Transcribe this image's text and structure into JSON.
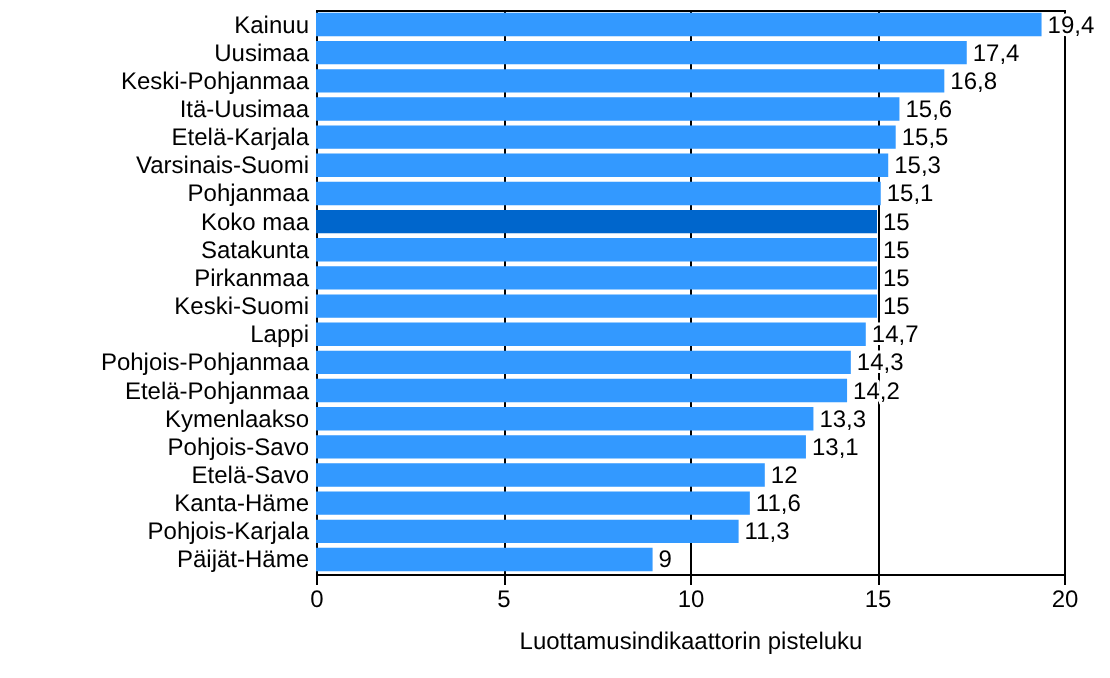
{
  "chart_data": {
    "type": "bar",
    "orientation": "horizontal",
    "xlabel": "Luottamusindikaattorin pisteluku",
    "categories": [
      "Kainuu",
      "Uusimaa",
      "Keski-Pohjanmaa",
      "Itä-Uusimaa",
      "Etelä-Karjala",
      "Varsinais-Suomi",
      "Pohjanmaa",
      "Koko maa",
      "Satakunta",
      "Pirkanmaa",
      "Keski-Suomi",
      "Lappi",
      "Pohjois-Pohjanmaa",
      "Etelä-Pohjanmaa",
      "Kymenlaakso",
      "Pohjois-Savo",
      "Etelä-Savo",
      "Kanta-Häme",
      "Pohjois-Karjala",
      "Päijät-Häme"
    ],
    "values": [
      19.4,
      17.4,
      16.8,
      15.6,
      15.5,
      15.3,
      15.1,
      15,
      15,
      15,
      15,
      14.7,
      14.3,
      14.2,
      13.3,
      13.1,
      12,
      11.6,
      11.3,
      9
    ],
    "value_labels": [
      "19,4",
      "17,4",
      "16,8",
      "15,6",
      "15,5",
      "15,3",
      "15,1",
      "15",
      "15",
      "15",
      "15",
      "14,7",
      "14,3",
      "14,2",
      "13,3",
      "13,1",
      "12",
      "11,6",
      "11,3",
      "9"
    ],
    "colors": [
      "#3399ff",
      "#3399ff",
      "#3399ff",
      "#3399ff",
      "#3399ff",
      "#3399ff",
      "#3399ff",
      "#0066cc",
      "#3399ff",
      "#3399ff",
      "#3399ff",
      "#3399ff",
      "#3399ff",
      "#3399ff",
      "#3399ff",
      "#3399ff",
      "#3399ff",
      "#3399ff",
      "#3399ff",
      "#3399ff"
    ],
    "xlim": [
      0,
      20
    ],
    "xticks": [
      0,
      5,
      10,
      15,
      20
    ],
    "grid": "x"
  }
}
